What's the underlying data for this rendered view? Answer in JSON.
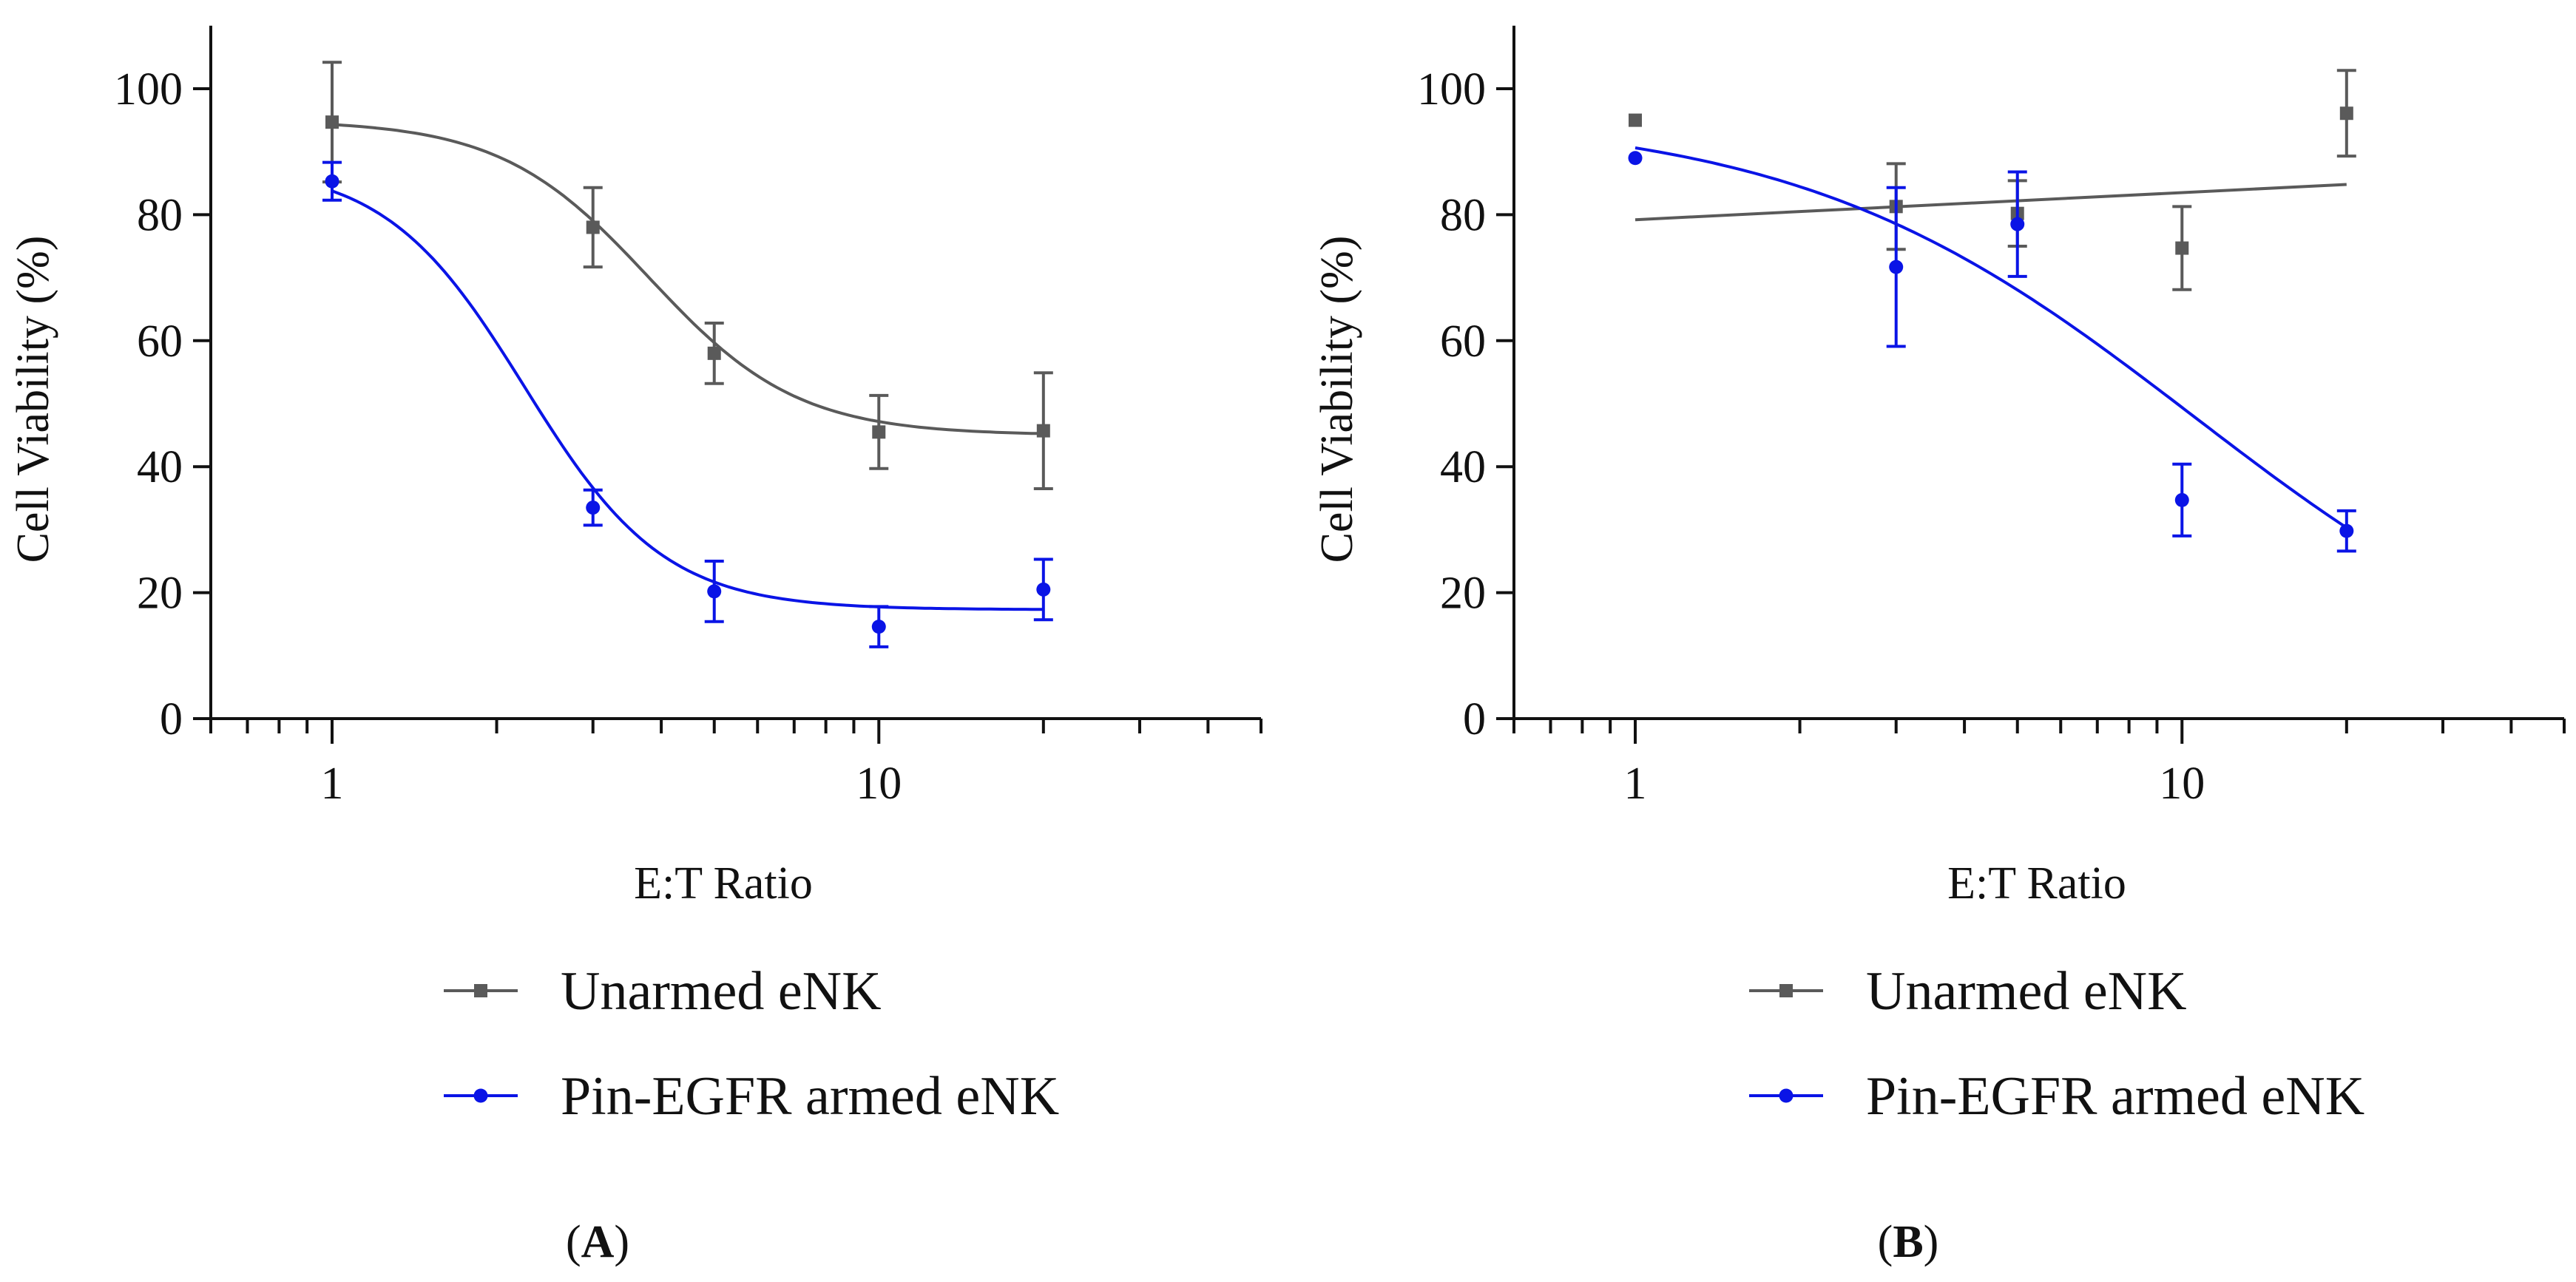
{
  "colors": {
    "unarmed": "#5a5a5a",
    "armed": "#0a14e6",
    "axis": "#111111"
  },
  "chart_data": [
    {
      "type": "scatter",
      "panel_label": "A",
      "xlabel": "E:T Ratio",
      "ylabel": "Cell Viability (%)",
      "x_scale": "log",
      "xlim": [
        0.6,
        50
      ],
      "ylim": [
        0,
        110
      ],
      "x_ticks": [
        1,
        10
      ],
      "x_tick_labels": [
        "1",
        "10"
      ],
      "y_ticks": [
        0,
        20,
        40,
        60,
        80,
        100
      ],
      "y_tick_labels": [
        "0",
        "20",
        "40",
        "60",
        "80",
        "100"
      ],
      "legend_position": "bottom",
      "series": [
        {
          "name": "Unarmed eNK",
          "color_key": "unarmed",
          "marker": "square",
          "x": [
            1,
            3,
            5,
            10,
            20
          ],
          "y": [
            94.7,
            78,
            58,
            45.5,
            45.7
          ],
          "error": [
            9.5,
            6.3,
            4.8,
            5.8,
            9.2
          ],
          "fit": {
            "model": "sigmoid",
            "top": 95,
            "bottom": 45,
            "ec50": 3.8,
            "hill": 3.2
          }
        },
        {
          "name": "Pin-EGFR armed eNK",
          "color_key": "armed",
          "marker": "circle",
          "x": [
            1,
            3,
            5,
            10,
            20
          ],
          "y": [
            85.3,
            33.5,
            20.2,
            14.6,
            20.5
          ],
          "error": [
            3.0,
            2.8,
            4.8,
            3.2,
            4.8
          ],
          "fit": {
            "model": "sigmoid",
            "top": 88,
            "bottom": 17.3,
            "ec50": 2.25,
            "hill": 3.4
          }
        }
      ]
    },
    {
      "type": "scatter",
      "panel_label": "B",
      "xlabel": "E:T Ratio",
      "ylabel": "Cell Viability (%)",
      "x_scale": "log",
      "xlim": [
        0.6,
        50
      ],
      "ylim": [
        0,
        110
      ],
      "x_ticks": [
        1,
        10
      ],
      "x_tick_labels": [
        "1",
        "10"
      ],
      "y_ticks": [
        0,
        20,
        40,
        60,
        80,
        100
      ],
      "y_tick_labels": [
        "0",
        "20",
        "40",
        "60",
        "80",
        "100"
      ],
      "legend_position": "bottom",
      "series": [
        {
          "name": "Unarmed eNK",
          "color_key": "unarmed",
          "marker": "square",
          "x": [
            1,
            3,
            5,
            10,
            20
          ],
          "y": [
            95,
            81.3,
            80.2,
            74.7,
            96.1
          ],
          "error": [
            0,
            6.8,
            5.2,
            6.6,
            6.8
          ],
          "fit": {
            "model": "linear",
            "x": [
              1,
              20
            ],
            "y": [
              79.2,
              84.8
            ]
          }
        },
        {
          "name": "Pin-EGFR armed eNK",
          "color_key": "armed",
          "marker": "circle",
          "x": [
            1,
            3,
            5,
            10,
            20
          ],
          "y": [
            89,
            71.7,
            78.5,
            34.7,
            29.8
          ],
          "error": [
            0,
            12.6,
            8.3,
            5.7,
            3.2
          ],
          "fit": {
            "model": "sigmoid",
            "top": 96,
            "bottom": 0,
            "ec50": 10.5,
            "hill": 1.2
          }
        }
      ]
    }
  ]
}
